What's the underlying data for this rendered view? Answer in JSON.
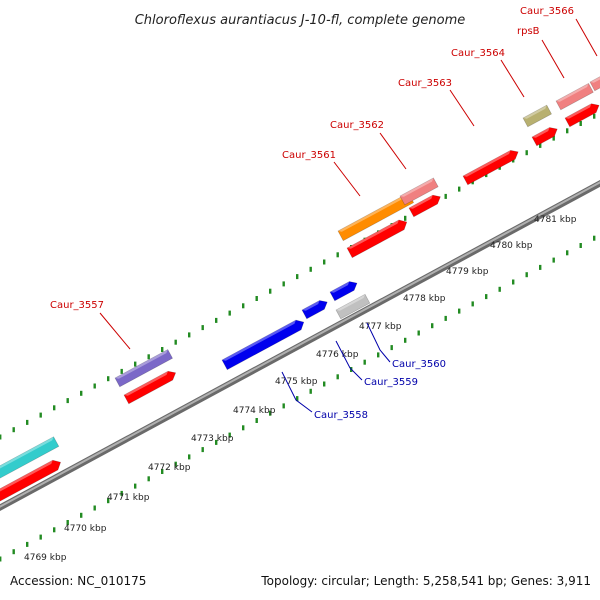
{
  "title": "Chloroflexus aurantiacus J-10-fl, complete genome",
  "footer": {
    "accession": "Accession: NC_010175",
    "stats": "Topology: circular; Length: 5,258,541 bp; Genes: 3,911"
  },
  "kbp_labels": [
    "4769 kbp",
    "4770 kbp",
    "4771 kbp",
    "4772 kbp",
    "4773 kbp",
    "4774 kbp",
    "4775 kbp",
    "4776 kbp",
    "4777 kbp",
    "4778 kbp",
    "4779 kbp",
    "4780 kbp",
    "4781 kbp"
  ],
  "gene_labels_forward": [
    "Caur_3557",
    "Caur_3561",
    "Caur_3562",
    "Caur_3563",
    "Caur_3564",
    "rpsB",
    "Caur_3566"
  ],
  "gene_labels_reverse": [
    "Caur_3558",
    "Caur_3559",
    "Caur_3560"
  ],
  "colors": {
    "cds": "#ff0000",
    "teal": "#33cccc",
    "purple": "#7b68c8",
    "orange": "#ff8c00",
    "pink": "#f08080",
    "olive": "#b8b070",
    "blue": "#0000ee",
    "grey": "#c0c0c0",
    "backbone": "#808080",
    "tick": "#228b22"
  }
}
